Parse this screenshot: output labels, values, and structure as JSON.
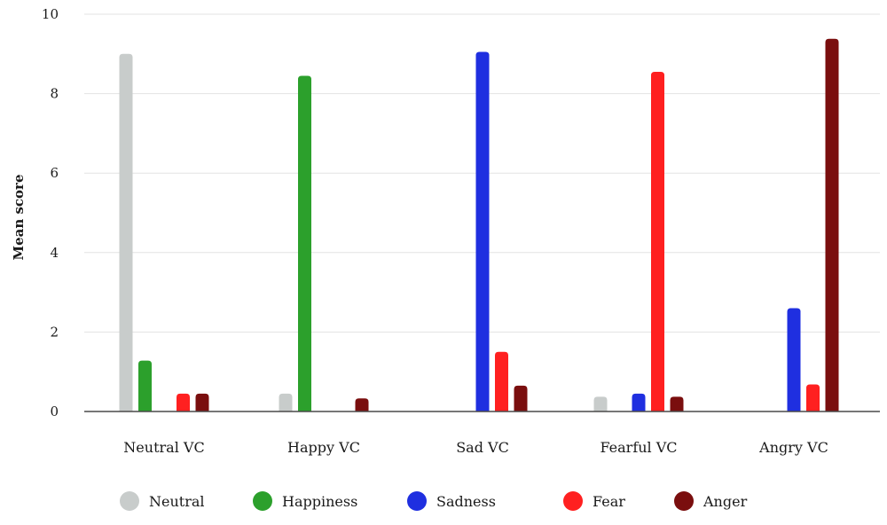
{
  "chart_data": {
    "type": "bar",
    "categories": [
      "Neutral VC",
      "Happy VC",
      "Sad VC",
      "Fearful VC",
      "Angry VC"
    ],
    "series": [
      {
        "name": "Neutral",
        "color": "#c8cccb",
        "values": [
          9.0,
          0.45,
          0.0,
          0.37,
          0.0
        ]
      },
      {
        "name": "Happiness",
        "color": "#2ca02c",
        "values": [
          1.28,
          8.45,
          0.0,
          0.0,
          0.0
        ]
      },
      {
        "name": "Sadness",
        "color": "#1f2fe0",
        "values": [
          0.0,
          0.0,
          9.05,
          0.45,
          2.6
        ]
      },
      {
        "name": "Fear",
        "color": "#ff2020",
        "values": [
          0.45,
          0.0,
          1.5,
          8.55,
          0.68
        ]
      },
      {
        "name": "Anger",
        "color": "#7a0e0e",
        "values": [
          0.45,
          0.33,
          0.65,
          0.37,
          9.38
        ]
      }
    ],
    "title": "",
    "xlabel": "",
    "ylabel": "Mean score",
    "ylim": [
      0,
      10
    ],
    "yticks": [
      "0",
      "2",
      "4",
      "6",
      "8",
      "10"
    ],
    "grid": true,
    "legend_position": "bottom"
  }
}
